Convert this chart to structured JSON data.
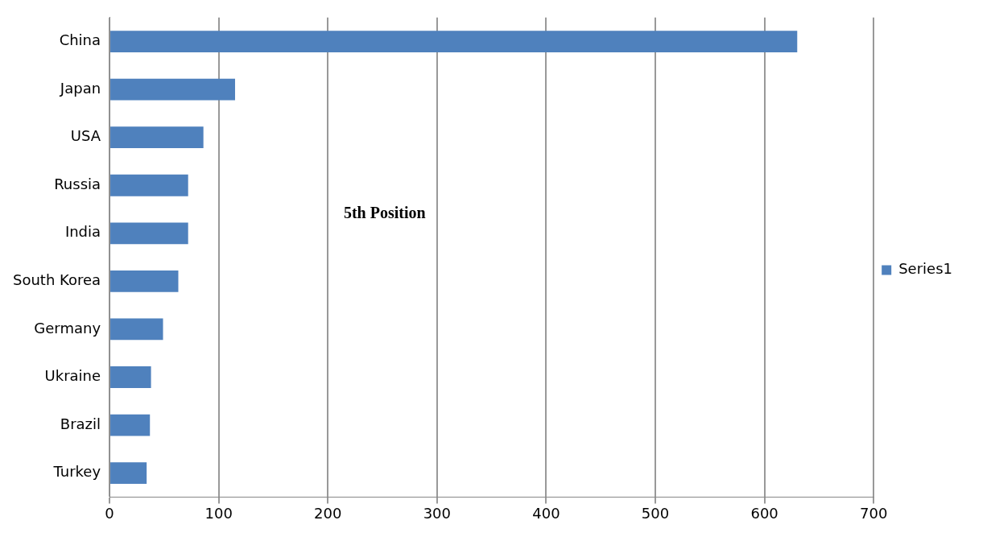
{
  "chart_data": {
    "type": "bar",
    "orientation": "horizontal",
    "categories": [
      "China",
      "Japan",
      "USA",
      "Russia",
      "India",
      "South Korea",
      "Germany",
      "Ukraine",
      "Brazil",
      "Turkey"
    ],
    "series": [
      {
        "name": "Series1",
        "color": "#4f81bd",
        "values": [
          630,
          115,
          86,
          72,
          72,
          63,
          49,
          38,
          37,
          34
        ]
      }
    ],
    "xlim": [
      0,
      700
    ],
    "xticks": [
      0,
      100,
      200,
      300,
      400,
      500,
      600,
      700
    ],
    "grid": "x",
    "legend": "right",
    "annotations": [
      "5th Position"
    ]
  }
}
